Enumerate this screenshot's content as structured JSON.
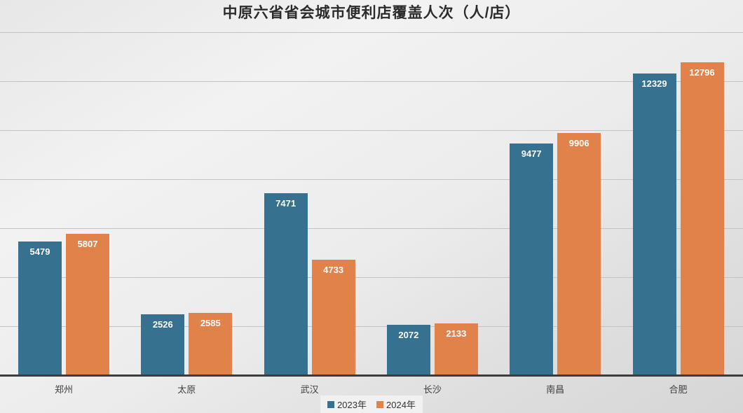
{
  "chart_data": {
    "type": "bar",
    "title": "中原六省省会城市便利店覆盖人次（人/店）",
    "categories": [
      "郑州",
      "太原",
      "武汉",
      "长沙",
      "南昌",
      "合肥"
    ],
    "series": [
      {
        "name": "2023年",
        "color": "#36718f",
        "values": [
          5479,
          2526,
          7471,
          2072,
          9477,
          12329
        ]
      },
      {
        "name": "2024年",
        "color": "#e2824b",
        "values": [
          5807,
          2585,
          4733,
          2133,
          9906,
          12796
        ]
      }
    ],
    "ylim": [
      0,
      14000
    ],
    "grid_interval": 2000,
    "grid": true,
    "yaxis_labels_visible": false,
    "data_labels": true,
    "data_label_color": "#ffffff",
    "legend_position": "bottom",
    "axis_line_color": "#3c3c3c",
    "gridline_color": "#c3c3c3"
  }
}
